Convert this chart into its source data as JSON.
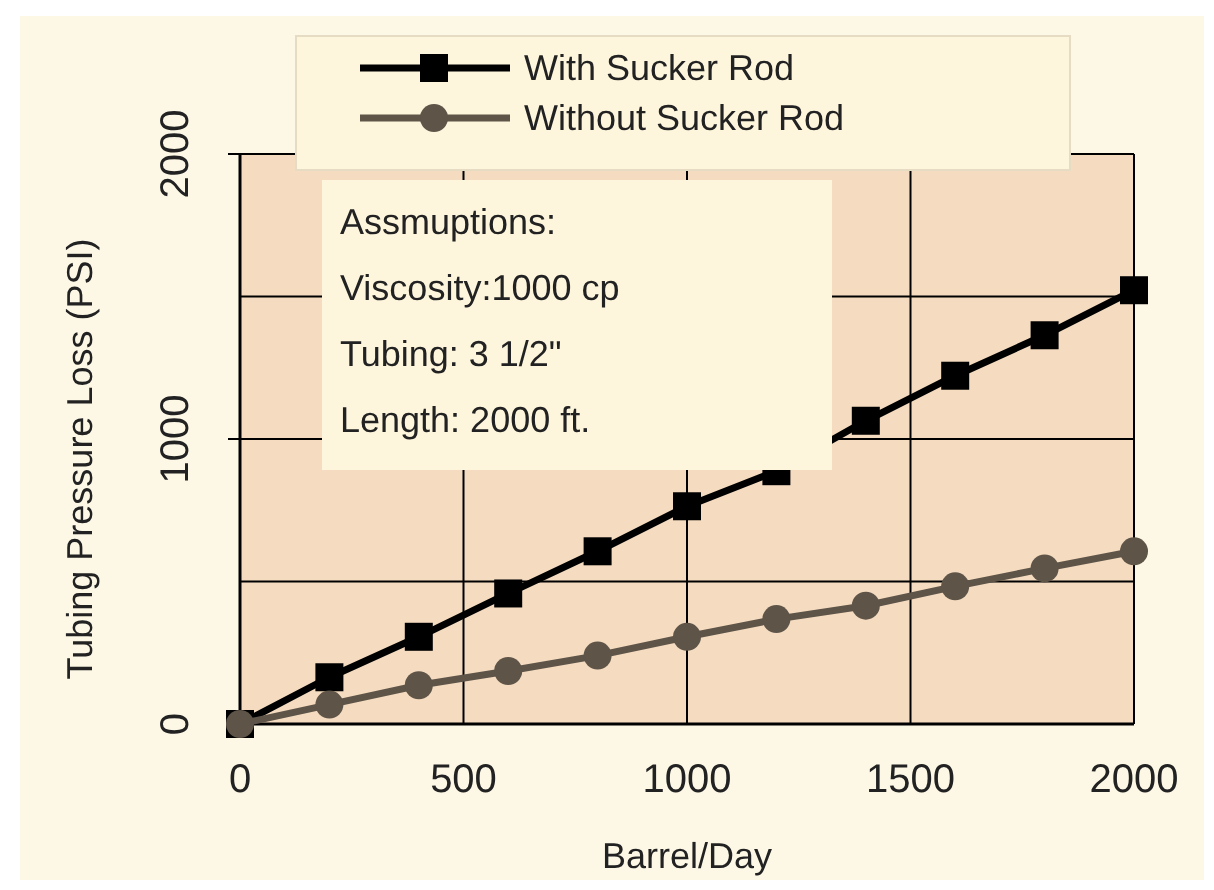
{
  "chart_data": {
    "type": "line",
    "xlabel": "Barrel/Day",
    "ylabel": "Tubing Pressure Loss (PSI)",
    "x": [
      0,
      200,
      400,
      600,
      800,
      1000,
      1200,
      1400,
      1600,
      1800,
      2000
    ],
    "series": [
      {
        "name": "With Sucker Rod",
        "color": "#000000",
        "marker": "square",
        "values": [
          0,
          164,
          306,
          458,
          606,
          764,
          887,
          1064,
          1222,
          1364,
          1522
        ]
      },
      {
        "name": "Without Sucker Rod",
        "color": "#5e5448",
        "marker": "circle",
        "values": [
          0,
          68,
          136,
          186,
          240,
          306,
          368,
          415,
          483,
          546,
          606
        ]
      }
    ],
    "xlim": [
      0,
      2000
    ],
    "xticks": [
      0,
      500,
      1000,
      1500,
      2000
    ],
    "ylim": [
      0,
      2000
    ],
    "yticks": [
      0,
      1000,
      2000
    ],
    "grid": true,
    "legend": "top",
    "annotations": [
      "Assmuptions:",
      "Viscosity:1000 cp",
      "Tubing: 3 1/2\"",
      "Length: 2000 ft."
    ]
  }
}
